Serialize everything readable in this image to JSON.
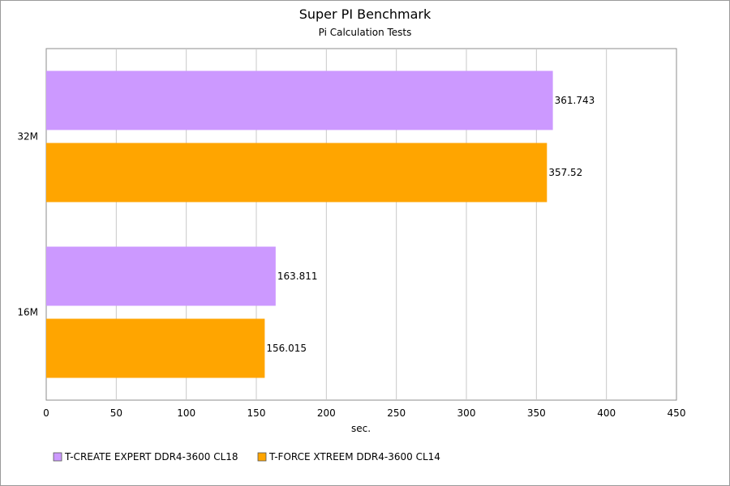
{
  "chart_data": {
    "type": "bar",
    "orientation": "horizontal",
    "title": "Super PI Benchmark",
    "subtitle": "Pi Calculation Tests",
    "xlabel": "sec.",
    "ylabel": "",
    "xlim": [
      0,
      450
    ],
    "x_ticks": [
      0,
      50,
      100,
      150,
      200,
      250,
      300,
      350,
      400,
      450
    ],
    "categories": [
      "32M",
      "16M"
    ],
    "series": [
      {
        "name": "T-CREATE EXPERT DDR4-3600 CL18",
        "color": "#cc99ff",
        "values": [
          361.743,
          163.811
        ],
        "labels": [
          "361.743",
          "163.811"
        ]
      },
      {
        "name": "T-FORCE XTREEM DDR4-3600 CL14",
        "color": "#ffa500",
        "values": [
          357.52,
          156.015
        ],
        "labels": [
          "357.52",
          "156.015"
        ]
      }
    ],
    "grid": true,
    "legend_position": "bottom-left"
  }
}
